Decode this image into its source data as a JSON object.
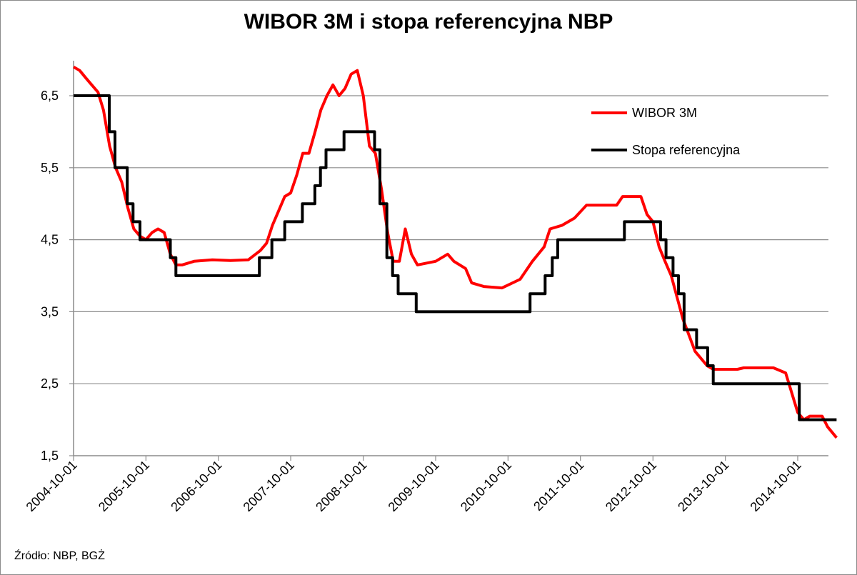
{
  "chart_data": {
    "type": "line",
    "title": "WIBOR 3M i stopa referencyjna NBP",
    "source": "Źródło: NBP, BGŻ",
    "xlabel": "",
    "ylabel": "",
    "ylim": [
      1.5,
      7.0
    ],
    "yticks": [
      "1,5",
      "2,5",
      "3,5",
      "4,5",
      "5,5",
      "6,5"
    ],
    "xticks": [
      "2004-10-01",
      "2005-10-01",
      "2006-10-01",
      "2007-10-01",
      "2008-10-01",
      "2009-10-01",
      "2010-10-01",
      "2011-10-01",
      "2012-10-01",
      "2013-10-01",
      "2014-10-01"
    ],
    "xlim": [
      "2004-10-01",
      "2015-04-15"
    ],
    "grid": "horizontal",
    "legend_position": "top-right",
    "series": [
      {
        "name": "WIBOR 3M",
        "color": "#ff0000",
        "points": [
          [
            "2004-10-01",
            6.9
          ],
          [
            "2004-11-01",
            6.85
          ],
          [
            "2004-12-01",
            6.75
          ],
          [
            "2005-01-01",
            6.65
          ],
          [
            "2005-02-01",
            6.55
          ],
          [
            "2005-03-01",
            6.3
          ],
          [
            "2005-04-01",
            5.8
          ],
          [
            "2005-05-01",
            5.5
          ],
          [
            "2005-06-01",
            5.3
          ],
          [
            "2005-07-01",
            4.95
          ],
          [
            "2005-08-01",
            4.65
          ],
          [
            "2005-09-01",
            4.55
          ],
          [
            "2005-10-01",
            4.5
          ],
          [
            "2005-11-01",
            4.6
          ],
          [
            "2005-12-01",
            4.65
          ],
          [
            "2006-01-01",
            4.6
          ],
          [
            "2006-02-01",
            4.3
          ],
          [
            "2006-03-01",
            4.15
          ],
          [
            "2006-04-01",
            4.15
          ],
          [
            "2006-06-01",
            4.2
          ],
          [
            "2006-09-01",
            4.22
          ],
          [
            "2006-12-01",
            4.21
          ],
          [
            "2007-03-01",
            4.22
          ],
          [
            "2007-05-01",
            4.35
          ],
          [
            "2007-06-01",
            4.45
          ],
          [
            "2007-07-01",
            4.7
          ],
          [
            "2007-08-01",
            4.9
          ],
          [
            "2007-09-01",
            5.1
          ],
          [
            "2007-10-01",
            5.15
          ],
          [
            "2007-11-01",
            5.4
          ],
          [
            "2007-12-01",
            5.7
          ],
          [
            "2008-01-01",
            5.7
          ],
          [
            "2008-02-01",
            6.0
          ],
          [
            "2008-03-01",
            6.3
          ],
          [
            "2008-04-01",
            6.5
          ],
          [
            "2008-05-01",
            6.65
          ],
          [
            "2008-06-01",
            6.5
          ],
          [
            "2008-07-01",
            6.6
          ],
          [
            "2008-08-01",
            6.8
          ],
          [
            "2008-09-01",
            6.85
          ],
          [
            "2008-10-01",
            6.5
          ],
          [
            "2008-11-01",
            5.8
          ],
          [
            "2008-12-01",
            5.7
          ],
          [
            "2009-01-01",
            5.2
          ],
          [
            "2009-02-01",
            4.6
          ],
          [
            "2009-03-01",
            4.2
          ],
          [
            "2009-04-01",
            4.2
          ],
          [
            "2009-05-01",
            4.65
          ],
          [
            "2009-06-01",
            4.3
          ],
          [
            "2009-07-01",
            4.15
          ],
          [
            "2009-10-01",
            4.2
          ],
          [
            "2009-12-01",
            4.3
          ],
          [
            "2010-01-01",
            4.2
          ],
          [
            "2010-03-01",
            4.1
          ],
          [
            "2010-04-01",
            3.9
          ],
          [
            "2010-06-01",
            3.85
          ],
          [
            "2010-09-01",
            3.83
          ],
          [
            "2010-12-01",
            3.95
          ],
          [
            "2011-02-01",
            4.2
          ],
          [
            "2011-04-01",
            4.4
          ],
          [
            "2011-05-01",
            4.65
          ],
          [
            "2011-07-01",
            4.7
          ],
          [
            "2011-09-01",
            4.8
          ],
          [
            "2011-11-01",
            4.98
          ],
          [
            "2012-01-01",
            4.98
          ],
          [
            "2012-04-01",
            4.98
          ],
          [
            "2012-05-01",
            5.1
          ],
          [
            "2012-08-01",
            5.1
          ],
          [
            "2012-09-01",
            4.85
          ],
          [
            "2012-10-01",
            4.75
          ],
          [
            "2012-11-01",
            4.4
          ],
          [
            "2012-12-01",
            4.2
          ],
          [
            "2013-01-01",
            4.0
          ],
          [
            "2013-03-01",
            3.4
          ],
          [
            "2013-05-01",
            2.95
          ],
          [
            "2013-07-01",
            2.75
          ],
          [
            "2013-08-01",
            2.7
          ],
          [
            "2013-12-01",
            2.7
          ],
          [
            "2014-01-01",
            2.72
          ],
          [
            "2014-06-01",
            2.72
          ],
          [
            "2014-08-01",
            2.65
          ],
          [
            "2014-10-01",
            2.1
          ],
          [
            "2014-11-01",
            2.0
          ],
          [
            "2014-12-01",
            2.05
          ],
          [
            "2015-02-01",
            2.05
          ],
          [
            "2015-03-01",
            1.9
          ],
          [
            "2015-04-15",
            1.75
          ]
        ]
      },
      {
        "name": "Stopa referencyjna",
        "color": "#000000",
        "points": [
          [
            "2004-10-01",
            6.5
          ],
          [
            "2005-03-30",
            6.0
          ],
          [
            "2005-04-28",
            5.5
          ],
          [
            "2005-06-29",
            5.0
          ],
          [
            "2005-07-28",
            4.75
          ],
          [
            "2005-09-01",
            4.5
          ],
          [
            "2006-02-01",
            4.25
          ],
          [
            "2006-03-01",
            4.0
          ],
          [
            "2007-04-26",
            4.25
          ],
          [
            "2007-06-28",
            4.5
          ],
          [
            "2007-09-01",
            4.75
          ],
          [
            "2007-11-29",
            5.0
          ],
          [
            "2008-01-31",
            5.25
          ],
          [
            "2008-02-28",
            5.5
          ],
          [
            "2008-03-27",
            5.75
          ],
          [
            "2008-06-26",
            6.0
          ],
          [
            "2008-11-27",
            5.75
          ],
          [
            "2008-12-24",
            5.0
          ],
          [
            "2009-01-28",
            4.25
          ],
          [
            "2009-02-26",
            4.0
          ],
          [
            "2009-03-26",
            3.75
          ],
          [
            "2009-06-25",
            3.5
          ],
          [
            "2011-01-20",
            3.75
          ],
          [
            "2011-04-06",
            4.0
          ],
          [
            "2011-05-12",
            4.25
          ],
          [
            "2011-06-09",
            4.5
          ],
          [
            "2012-05-10",
            4.75
          ],
          [
            "2012-11-08",
            4.5
          ],
          [
            "2012-12-06",
            4.25
          ],
          [
            "2013-01-10",
            4.0
          ],
          [
            "2013-02-07",
            3.75
          ],
          [
            "2013-03-07",
            3.25
          ],
          [
            "2013-05-09",
            3.0
          ],
          [
            "2013-07-04",
            2.75
          ],
          [
            "2013-08-01",
            2.5
          ],
          [
            "2014-10-09",
            2.0
          ],
          [
            "2015-04-15",
            2.0
          ]
        ]
      }
    ]
  }
}
